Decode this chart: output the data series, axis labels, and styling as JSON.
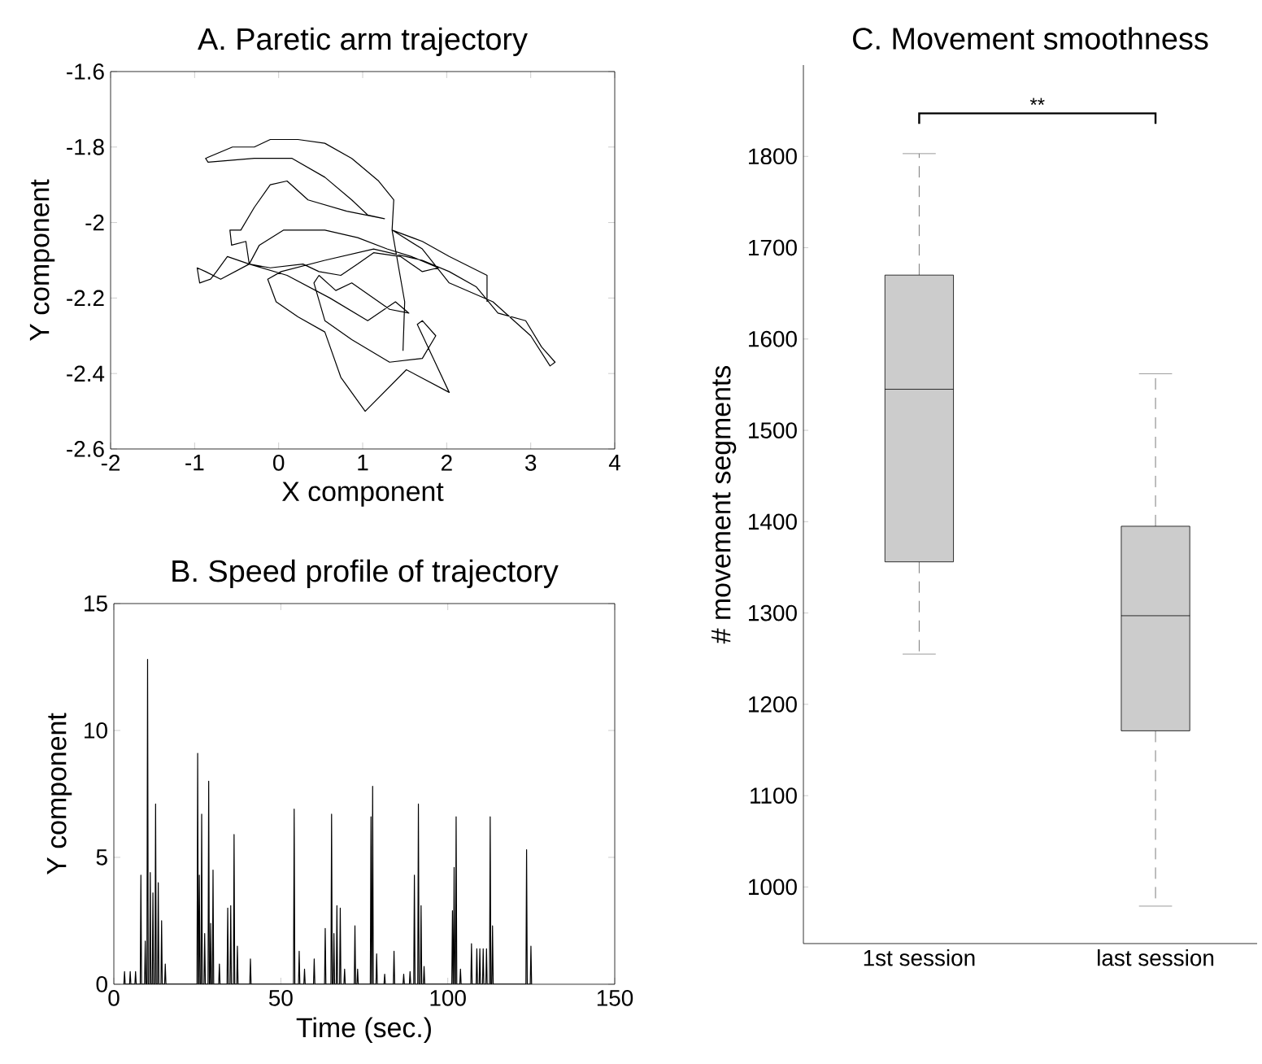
{
  "chart_data": [
    {
      "type": "line",
      "title": "A. Paretic arm trajectory",
      "xlabel": "X component",
      "ylabel": "Y component",
      "color": "#000000",
      "x": [
        1.48,
        1.5,
        1.35,
        1.37,
        1.19,
        0.87,
        0.55,
        0.23,
        -0.1,
        -0.29,
        -0.55,
        -0.87,
        -0.84,
        -0.29,
        0.16,
        0.55,
        0.87,
        1.06,
        1.26,
        0.81,
        0.35,
        0.1,
        -0.1,
        -0.29,
        -0.45,
        -0.58,
        -0.56,
        -0.39,
        -0.35,
        -0.23,
        0.06,
        0.55,
        0.94,
        1.29,
        1.58,
        1.9,
        1.71,
        1.45,
        1.13,
        0.94,
        0.74,
        0.48,
        0.29,
        -0.1,
        -0.35,
        -0.61,
        -0.74,
        -0.81,
        -0.94,
        -0.97,
        -0.87,
        -0.69,
        -0.35,
        0.1,
        0.61,
        1.06,
        1.39,
        1.55,
        1.32,
        0.87,
        0.68,
        0.48,
        0.42,
        0.55,
        0.87,
        1.32,
        1.71,
        1.87,
        1.71,
        1.65,
        1.84,
        2.03,
        1.52,
        1.03,
        0.74,
        0.55,
        0.23,
        -0.03,
        -0.13,
        0.03,
        0.55,
        1.13,
        1.71,
        2.03,
        2.35,
        2.61,
        2.94,
        3.13,
        3.29,
        3.23,
        3.0,
        2.55,
        2.03,
        1.71,
        1.35,
        1.71,
        2.03,
        2.48,
        2.48
      ],
      "values": [
        -2.34,
        -2.21,
        -2.02,
        -1.94,
        -1.89,
        -1.83,
        -1.79,
        -1.78,
        -1.78,
        -1.8,
        -1.8,
        -1.83,
        -1.84,
        -1.83,
        -1.83,
        -1.88,
        -1.94,
        -1.98,
        -1.99,
        -1.97,
        -1.94,
        -1.89,
        -1.9,
        -1.96,
        -2.02,
        -2.02,
        -2.06,
        -2.05,
        -2.11,
        -2.06,
        -2.02,
        -2.02,
        -2.04,
        -2.07,
        -2.09,
        -2.12,
        -2.13,
        -2.09,
        -2.08,
        -2.11,
        -2.14,
        -2.13,
        -2.11,
        -2.12,
        -2.11,
        -2.09,
        -2.13,
        -2.15,
        -2.16,
        -2.12,
        -2.13,
        -2.15,
        -2.11,
        -2.14,
        -2.2,
        -2.26,
        -2.21,
        -2.24,
        -2.23,
        -2.16,
        -2.18,
        -2.14,
        -2.16,
        -2.26,
        -2.31,
        -2.37,
        -2.36,
        -2.3,
        -2.26,
        -2.27,
        -2.36,
        -2.45,
        -2.39,
        -2.5,
        -2.41,
        -2.29,
        -2.25,
        -2.21,
        -2.15,
        -2.13,
        -2.1,
        -2.07,
        -2.1,
        -2.13,
        -2.17,
        -2.24,
        -2.26,
        -2.33,
        -2.37,
        -2.38,
        -2.3,
        -2.21,
        -2.16,
        -2.07,
        -2.02,
        -2.05,
        -2.09,
        -2.14,
        -2.21
      ],
      "xlim": [
        -2,
        4
      ],
      "ylim": [
        -2.6,
        -1.6
      ],
      "xticks": [
        -2,
        -1,
        0,
        1,
        2,
        3,
        4
      ],
      "yticks": [
        -2.6,
        -2.4,
        -2.2,
        -2,
        -1.8,
        -1.6
      ]
    },
    {
      "type": "line",
      "title": "B. Speed profile of trajectory",
      "xlabel": "Time (sec.)",
      "ylabel": "Y component",
      "color": "#000000",
      "x": [
        3.0,
        3.2,
        3.4,
        4.7,
        4.9,
        5.1,
        6.3,
        6.5,
        6.7,
        7.9,
        8.1,
        8.3,
        9.2,
        9.4,
        9.6,
        9.9,
        10.1,
        10.3,
        10.7,
        10.9,
        11.1,
        11.5,
        11.7,
        11.9,
        12.3,
        12.5,
        12.7,
        13.1,
        13.3,
        13.5,
        14.1,
        14.3,
        14.5,
        15.2,
        15.4,
        15.6,
        24.9,
        25.1,
        25.3,
        25.4,
        25.6,
        25.8,
        26.1,
        26.3,
        26.5,
        27.0,
        27.2,
        27.4,
        28.2,
        28.4,
        28.6,
        28.8,
        29.0,
        29.2,
        29.5,
        29.7,
        29.9,
        31.4,
        31.6,
        31.8,
        33.9,
        34.1,
        34.3,
        34.8,
        35.0,
        35.2,
        35.8,
        36.0,
        36.2,
        36.8,
        37.0,
        37.2,
        40.7,
        40.9,
        41.1,
        53.8,
        54.0,
        54.2,
        55.3,
        55.5,
        55.7,
        56.9,
        57.1,
        57.3,
        59.8,
        60.0,
        60.2,
        63.1,
        63.3,
        63.5,
        65.0,
        65.2,
        65.4,
        65.7,
        65.9,
        66.1,
        66.6,
        66.8,
        67.0,
        67.6,
        67.8,
        68.0,
        68.9,
        69.1,
        69.3,
        72.0,
        72.2,
        72.4,
        72.8,
        73.0,
        73.2,
        76.8,
        77.0,
        77.2,
        77.3,
        77.5,
        77.7,
        78.5,
        78.7,
        78.9,
        80.9,
        81.1,
        81.3,
        83.7,
        83.9,
        84.1,
        86.6,
        86.8,
        87.0,
        88.5,
        88.7,
        88.9,
        89.8,
        90.0,
        90.2,
        91.0,
        91.2,
        91.4,
        91.8,
        92.0,
        92.2,
        92.7,
        92.9,
        93.1,
        101.2,
        101.4,
        101.6,
        101.7,
        101.9,
        102.1,
        102.3,
        102.5,
        102.7,
        103.6,
        103.8,
        104.0,
        106.9,
        107.1,
        107.3,
        108.5,
        108.7,
        108.9,
        109.4,
        109.6,
        109.8,
        110.4,
        110.6,
        110.8,
        111.4,
        111.6,
        111.8,
        112.5,
        112.7,
        112.9,
        113.2,
        113.4,
        113.6,
        123.4,
        123.6,
        123.8,
        124.7,
        124.9,
        125.1
      ],
      "values": [
        0,
        0.5,
        0,
        0,
        0.5,
        0,
        0,
        0.5,
        0,
        0,
        4.3,
        0,
        0,
        1.7,
        0,
        0,
        12.8,
        0,
        0,
        4.4,
        0,
        0,
        3.6,
        0,
        0,
        7.1,
        0,
        0,
        4.0,
        0,
        0,
        2.5,
        0,
        0,
        0.8,
        0,
        0,
        9.1,
        0,
        0,
        4.3,
        0,
        0,
        6.7,
        0,
        0,
        2.0,
        0,
        0,
        8.0,
        0,
        0,
        2.4,
        0,
        0,
        4.5,
        0,
        0,
        0.8,
        0,
        0,
        3.0,
        0,
        0,
        3.1,
        0,
        0,
        5.9,
        0,
        0,
        1.5,
        0,
        0,
        1.0,
        0,
        0,
        6.9,
        0,
        0,
        1.3,
        0,
        0,
        0.6,
        0,
        0,
        1.0,
        0,
        0,
        2.2,
        0,
        0,
        6.7,
        0,
        0,
        2.0,
        0,
        0,
        3.1,
        0,
        0,
        3.0,
        0,
        0,
        0.6,
        0,
        0,
        2.3,
        0,
        0,
        0.6,
        0,
        0,
        6.6,
        0,
        0,
        7.8,
        0,
        0,
        1.2,
        0,
        0,
        0.4,
        0,
        0,
        1.3,
        0,
        0,
        0.4,
        0,
        0,
        0.5,
        0,
        0,
        4.3,
        0,
        0,
        7.1,
        0,
        0,
        3.1,
        0,
        0,
        0.7,
        0,
        0,
        2.9,
        0,
        0,
        4.6,
        0,
        0,
        6.6,
        0,
        0,
        0.6,
        0,
        0,
        1.6,
        0,
        0,
        1.4,
        0,
        0,
        1.4,
        0,
        0,
        1.4,
        0,
        0,
        1.4,
        0,
        0,
        6.6,
        0,
        0,
        2.3,
        0,
        0,
        5.3,
        0,
        0,
        1.5,
        0
      ],
      "xlim": [
        0,
        150
      ],
      "ylim": [
        0,
        15
      ],
      "xticks": [
        0,
        50,
        100,
        150
      ],
      "yticks": [
        0,
        5,
        10,
        15
      ]
    },
    {
      "type": "box",
      "title": "C. Movement smoothness",
      "ylabel": "# movement segments",
      "color": "#cccccc",
      "categories": [
        "1st session",
        "last session"
      ],
      "boxes": [
        {
          "low": 1255,
          "q1": 1356,
          "median": 1545,
          "q3": 1670,
          "high": 1803
        },
        {
          "low": 979,
          "q1": 1171,
          "median": 1297,
          "q3": 1395,
          "high": 1562
        }
      ],
      "ylim": [
        938,
        1900
      ],
      "yticks": [
        1000,
        1100,
        1200,
        1300,
        1400,
        1500,
        1600,
        1700,
        1800
      ],
      "annotations": [
        "**"
      ]
    }
  ]
}
